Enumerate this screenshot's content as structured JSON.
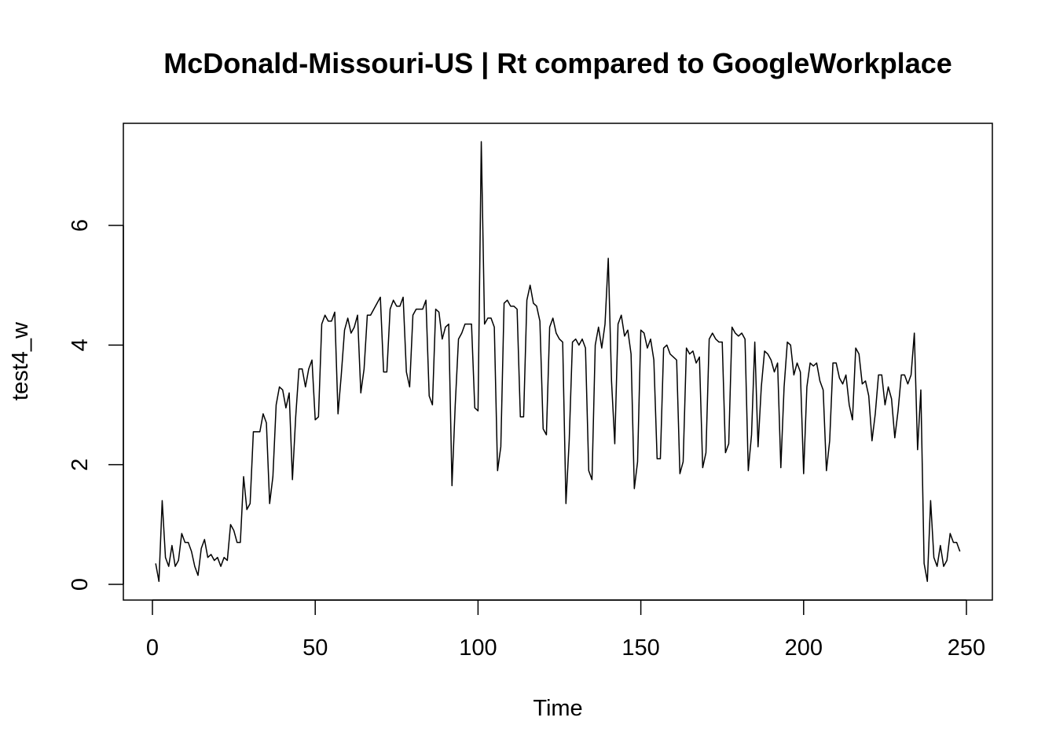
{
  "chart_data": {
    "type": "line",
    "title": "McDonald-Missouri-US | Rt compared to GoogleWorkplace",
    "xlabel": "Time",
    "ylabel": "test4_w",
    "xlim": [
      1,
      249
    ],
    "ylim": [
      0,
      7.4
    ],
    "x_ticks": [
      0,
      50,
      100,
      150,
      200,
      250
    ],
    "x_tick_labels": [
      "0",
      "50",
      "100",
      "150",
      "200",
      "250"
    ],
    "y_ticks": [
      0,
      2,
      4,
      6
    ],
    "y_tick_labels": [
      "0",
      "2",
      "4",
      "6"
    ],
    "grid": false,
    "x_start": 1,
    "x_step": 1,
    "series": [
      {
        "color": "#000000",
        "values": [
          0.35,
          0.05,
          1.4,
          0.45,
          0.3,
          0.65,
          0.3,
          0.4,
          0.85,
          0.7,
          0.7,
          0.55,
          0.3,
          0.15,
          0.6,
          0.75,
          0.45,
          0.5,
          0.4,
          0.45,
          0.3,
          0.45,
          0.4,
          1.0,
          0.9,
          0.7,
          0.7,
          1.8,
          1.25,
          1.35,
          2.55,
          2.55,
          2.55,
          2.85,
          2.7,
          1.35,
          1.8,
          3.0,
          3.3,
          3.25,
          2.95,
          3.2,
          1.75,
          2.8,
          3.6,
          3.6,
          3.3,
          3.6,
          3.75,
          2.75,
          2.8,
          4.35,
          4.5,
          4.4,
          4.4,
          4.55,
          2.85,
          3.5,
          4.25,
          4.45,
          4.2,
          4.3,
          4.5,
          3.2,
          3.6,
          4.5,
          4.5,
          4.6,
          4.7,
          4.8,
          3.55,
          3.55,
          4.6,
          4.75,
          4.65,
          4.65,
          4.8,
          3.55,
          3.3,
          4.5,
          4.6,
          4.6,
          4.6,
          4.75,
          3.15,
          3.0,
          4.6,
          4.55,
          4.1,
          4.3,
          4.35,
          1.65,
          3.0,
          4.1,
          4.2,
          4.35,
          4.35,
          4.35,
          2.95,
          2.9,
          7.4,
          4.35,
          4.45,
          4.45,
          4.3,
          1.9,
          2.3,
          4.7,
          4.75,
          4.65,
          4.65,
          4.6,
          2.8,
          2.8,
          4.75,
          5.0,
          4.7,
          4.65,
          4.4,
          2.6,
          2.5,
          4.3,
          4.45,
          4.2,
          4.1,
          4.05,
          1.35,
          2.4,
          4.05,
          4.1,
          4.0,
          4.1,
          3.95,
          1.9,
          1.75,
          4.0,
          4.3,
          3.95,
          4.35,
          5.45,
          3.4,
          2.35,
          4.35,
          4.5,
          4.15,
          4.25,
          3.85,
          1.6,
          2.05,
          4.25,
          4.2,
          3.95,
          4.1,
          3.75,
          2.1,
          2.1,
          3.95,
          4.0,
          3.85,
          3.8,
          3.75,
          1.85,
          2.05,
          3.95,
          3.85,
          3.9,
          3.7,
          3.8,
          1.95,
          2.2,
          4.1,
          4.2,
          4.1,
          4.05,
          4.05,
          2.2,
          2.35,
          4.3,
          4.2,
          4.15,
          4.2,
          4.1,
          1.9,
          2.5,
          4.05,
          2.3,
          3.3,
          3.9,
          3.85,
          3.75,
          3.55,
          3.7,
          1.95,
          3.3,
          4.05,
          4.0,
          3.5,
          3.7,
          3.55,
          1.85,
          3.3,
          3.7,
          3.65,
          3.7,
          3.4,
          3.25,
          1.9,
          2.4,
          3.7,
          3.7,
          3.45,
          3.35,
          3.5,
          3.0,
          2.75,
          3.95,
          3.85,
          3.35,
          3.4,
          3.15,
          2.4,
          2.85,
          3.5,
          3.5,
          3.0,
          3.3,
          3.1,
          2.45,
          2.9,
          3.5,
          3.5,
          3.35,
          3.5,
          4.2,
          2.25,
          3.25,
          0.35,
          0.05,
          1.4,
          0.45,
          0.3,
          0.65,
          0.3,
          0.4,
          0.85,
          0.7,
          0.7,
          0.55
        ]
      }
    ]
  }
}
